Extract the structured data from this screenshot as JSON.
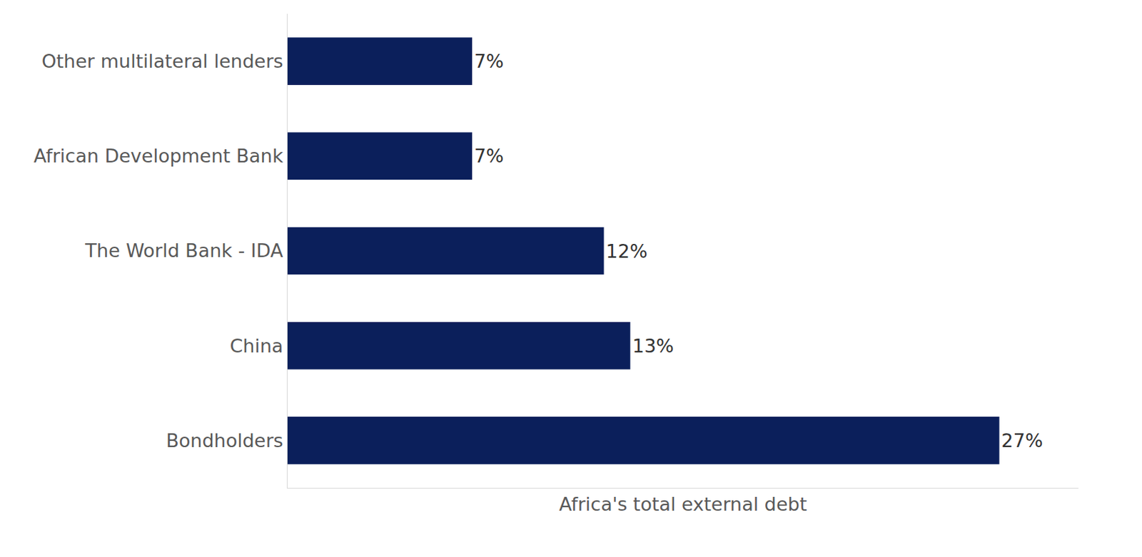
{
  "chart_data": {
    "type": "bar",
    "orientation": "horizontal",
    "xlabel": "Africa's total external debt",
    "categories": [
      "Bondholders",
      "China",
      "The World Bank - IDA",
      "African Development Bank",
      "Other multilateral lenders"
    ],
    "values": [
      27,
      13,
      12,
      7,
      7
    ],
    "value_labels": [
      "27%",
      "13%",
      "12%",
      "7%",
      "7%"
    ],
    "color": "#0b1f5b",
    "xlim": [
      0,
      30
    ],
    "data_labels": true,
    "tick_labels": "y",
    "grid": false
  }
}
